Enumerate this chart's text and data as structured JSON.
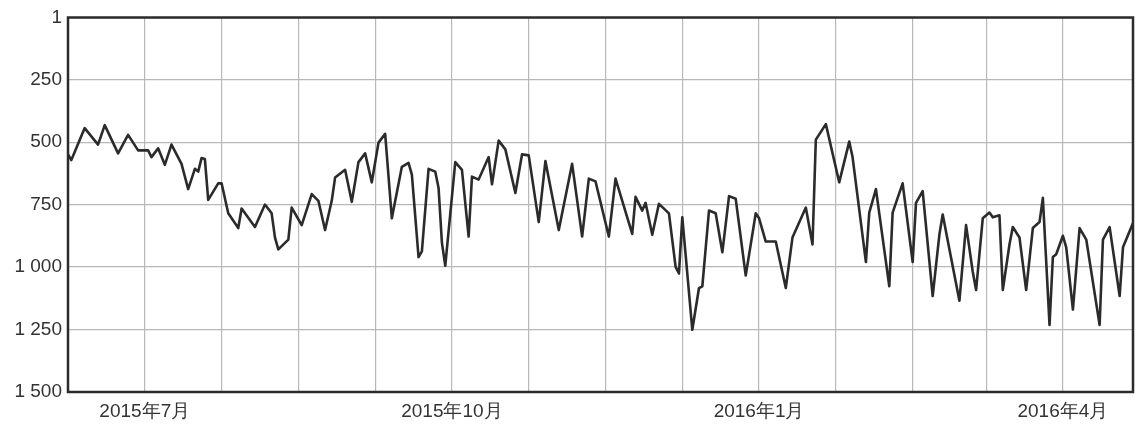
{
  "chart_data": {
    "type": "line",
    "color": "#2b2b2b",
    "grid": true,
    "legend": false,
    "marker": "none",
    "line_style": "solid",
    "xlim": [
      "2015-06-08",
      "2016-04-22"
    ],
    "xticks": [
      {
        "value": "2015-07-01",
        "label": "2015年7月"
      },
      {
        "value": "2015-07-24",
        "label": null
      },
      {
        "value": "2015-08-16",
        "label": null
      },
      {
        "value": "2015-09-08",
        "label": null
      },
      {
        "value": "2015-10-01",
        "label": "2015年10月"
      },
      {
        "value": "2015-10-24",
        "label": null
      },
      {
        "value": "2015-11-16",
        "label": null
      },
      {
        "value": "2015-12-09",
        "label": null
      },
      {
        "value": "2016-01-01",
        "label": "2016年1月"
      },
      {
        "value": "2016-01-24",
        "label": null
      },
      {
        "value": "2016-02-16",
        "label": null
      },
      {
        "value": "2016-03-09",
        "label": null
      },
      {
        "value": "2016-04-01",
        "label": "2016年4月"
      }
    ],
    "ylim": [
      1500,
      1
    ],
    "yticks": [
      1,
      250,
      500,
      750,
      {
        "value": 1000,
        "label": "1 000"
      },
      {
        "value": 1250,
        "label": "1 250"
      },
      {
        "value": 1500,
        "label": "1 500"
      }
    ],
    "x": [
      "2015-06-08",
      "2015-06-09",
      "2015-06-13",
      "2015-06-17",
      "2015-06-19",
      "2015-06-23",
      "2015-06-26",
      "2015-06-29",
      "2015-07-02",
      "2015-07-03",
      "2015-07-05",
      "2015-07-07",
      "2015-07-09",
      "2015-07-12",
      "2015-07-14",
      "2015-07-16",
      "2015-07-17",
      "2015-07-18",
      "2015-07-19",
      "2015-07-20",
      "2015-07-23",
      "2015-07-24",
      "2015-07-26",
      "2015-07-29",
      "2015-07-30",
      "2015-08-03",
      "2015-08-06",
      "2015-08-08",
      "2015-08-09",
      "2015-08-10",
      "2015-08-13",
      "2015-08-14",
      "2015-08-17",
      "2015-08-20",
      "2015-08-22",
      "2015-08-24",
      "2015-08-26",
      "2015-08-27",
      "2015-08-30",
      "2015-09-01",
      "2015-09-03",
      "2015-09-05",
      "2015-09-07",
      "2015-09-09",
      "2015-09-11",
      "2015-09-13",
      "2015-09-16",
      "2015-09-18",
      "2015-09-19",
      "2015-09-21",
      "2015-09-22",
      "2015-09-24",
      "2015-09-26",
      "2015-09-27",
      "2015-09-28",
      "2015-09-29",
      "2015-10-02",
      "2015-10-04",
      "2015-10-06",
      "2015-10-07",
      "2015-10-09",
      "2015-10-12",
      "2015-10-13",
      "2015-10-15",
      "2015-10-17",
      "2015-10-20",
      "2015-10-22",
      "2015-10-24",
      "2015-10-27",
      "2015-10-29",
      "2015-11-02",
      "2015-11-06",
      "2015-11-09",
      "2015-11-11",
      "2015-11-13",
      "2015-11-17",
      "2015-11-19",
      "2015-11-24",
      "2015-11-25",
      "2015-11-27",
      "2015-11-28",
      "2015-11-30",
      "2015-12-02",
      "2015-12-05",
      "2015-12-07",
      "2015-12-08",
      "2015-12-09",
      "2015-12-12",
      "2015-12-14",
      "2015-12-15",
      "2015-12-17",
      "2015-12-19",
      "2015-12-21",
      "2015-12-23",
      "2015-12-25",
      "2015-12-28",
      "2015-12-31",
      "2016-01-01",
      "2016-01-03",
      "2016-01-06",
      "2016-01-09",
      "2016-01-11",
      "2016-01-15",
      "2016-01-17",
      "2016-01-18",
      "2016-01-21",
      "2016-01-25",
      "2016-01-28",
      "2016-01-29",
      "2016-02-02",
      "2016-02-03",
      "2016-02-05",
      "2016-02-09",
      "2016-02-10",
      "2016-02-13",
      "2016-02-16",
      "2016-02-17",
      "2016-02-19",
      "2016-02-22",
      "2016-02-24",
      "2016-02-25",
      "2016-03-01",
      "2016-03-03",
      "2016-03-05",
      "2016-03-06",
      "2016-03-08",
      "2016-03-10",
      "2016-03-11",
      "2016-03-13",
      "2016-03-14",
      "2016-03-16",
      "2016-03-17",
      "2016-03-19",
      "2016-03-21",
      "2016-03-23",
      "2016-03-25",
      "2016-03-26",
      "2016-03-28",
      "2016-03-29",
      "2016-03-30",
      "2016-04-01",
      "2016-04-02",
      "2016-04-04",
      "2016-04-06",
      "2016-04-08",
      "2016-04-12",
      "2016-04-13",
      "2016-04-15",
      "2016-04-18",
      "2016-04-19",
      "2016-04-22"
    ],
    "values": [
      549,
      572,
      444,
      510,
      432,
      545,
      471,
      533,
      533,
      560,
      525,
      591,
      510,
      587,
      688,
      607,
      618,
      564,
      568,
      731,
      665,
      665,
      785,
      844,
      766,
      840,
      750,
      785,
      882,
      929,
      890,
      762,
      832,
      708,
      735,
      852,
      735,
      642,
      611,
      739,
      580,
      545,
      661,
      502,
      467,
      805,
      599,
      583,
      630,
      960,
      937,
      607,
      618,
      684,
      902,
      995,
      580,
      611,
      878,
      638,
      650,
      560,
      669,
      494,
      529,
      704,
      549,
      553,
      820,
      576,
      852,
      587,
      878,
      646,
      657,
      878,
      646,
      867,
      719,
      774,
      743,
      871,
      747,
      785,
      999,
      1026,
      801,
      1251,
      1084,
      1077,
      774,
      785,
      941,
      716,
      727,
      1034,
      785,
      805,
      898,
      898,
      1084,
      882,
      762,
      910,
      490,
      428,
      661,
      498,
      560,
      980,
      782,
      688,
      1077,
      782,
      665,
      980,
      743,
      696,
      1116,
      871,
      790,
      1135,
      832,
      1019,
      1092,
      805,
      782,
      801,
      793,
      1092,
      910,
      840,
      882,
      1092,
      844,
      820,
      723,
      1232,
      960,
      949,
      875,
      921,
      1170,
      844,
      890,
      1232,
      890,
      840,
      1116,
      921,
      824
    ]
  }
}
